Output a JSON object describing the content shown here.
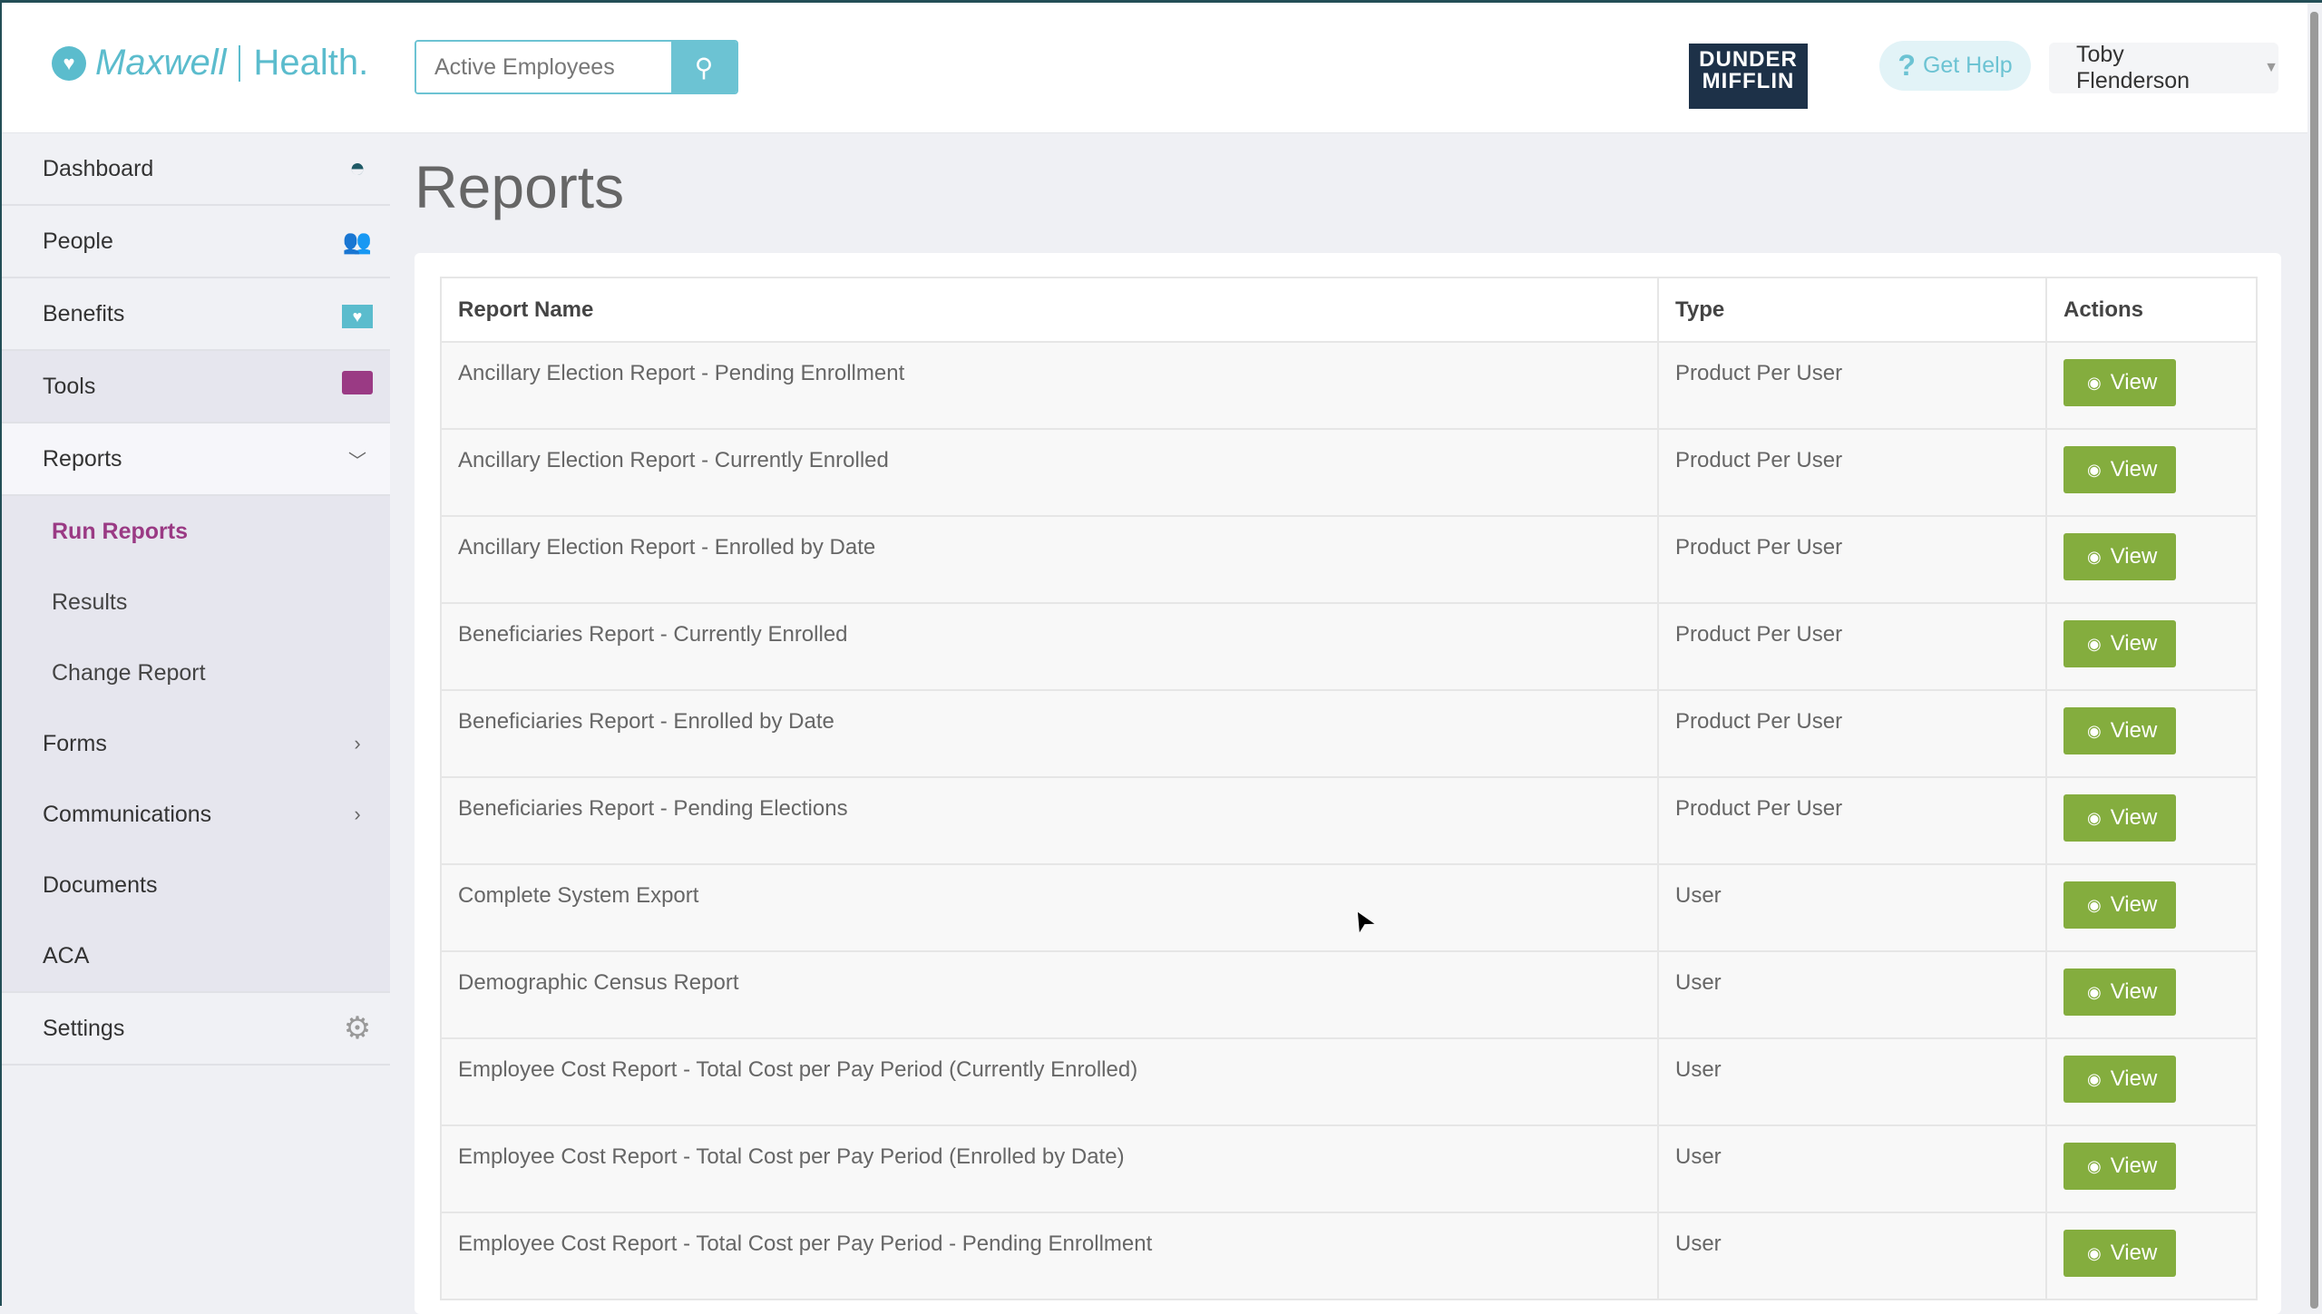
{
  "header": {
    "brand_first": "Maxwell",
    "brand_second": "Health.",
    "search_value": "Active Employees",
    "search_placeholder": "Active Employees",
    "company_logo_line1": "DUNDER",
    "company_logo_line2": "MIFFLIN",
    "help_label": "Get Help",
    "user_name": "Toby Flenderson"
  },
  "sidebar": {
    "items": [
      {
        "label": "Dashboard",
        "icon": "dashboard-gauge-icon"
      },
      {
        "label": "People",
        "icon": "people-icon"
      },
      {
        "label": "Benefits",
        "icon": "heart-icon"
      },
      {
        "label": "Tools",
        "icon": "toolbox-icon"
      },
      {
        "label": "Reports",
        "icon": "chevron-down-icon"
      },
      {
        "label": "Run Reports"
      },
      {
        "label": "Results"
      },
      {
        "label": "Change Report"
      },
      {
        "label": "Forms",
        "icon": "chevron-right-icon"
      },
      {
        "label": "Communications",
        "icon": "chevron-right-icon"
      },
      {
        "label": "Documents"
      },
      {
        "label": "ACA"
      },
      {
        "label": "Settings",
        "icon": "gear-icon"
      }
    ]
  },
  "page": {
    "title": "Reports"
  },
  "table": {
    "headers": [
      "Report Name",
      "Type",
      "Actions"
    ],
    "view_label": "View",
    "rows": [
      {
        "name": "Ancillary Election Report - Pending Enrollment",
        "type": "Product Per User"
      },
      {
        "name": "Ancillary Election Report - Currently Enrolled",
        "type": "Product Per User"
      },
      {
        "name": "Ancillary Election Report - Enrolled by Date",
        "type": "Product Per User"
      },
      {
        "name": "Beneficiaries Report - Currently Enrolled",
        "type": "Product Per User"
      },
      {
        "name": "Beneficiaries Report - Enrolled by Date",
        "type": "Product Per User"
      },
      {
        "name": "Beneficiaries Report - Pending Elections",
        "type": "Product Per User"
      },
      {
        "name": "Complete System Export",
        "type": "User"
      },
      {
        "name": "Demographic Census Report",
        "type": "User"
      },
      {
        "name": "Employee Cost Report - Total Cost per Pay Period (Currently Enrolled)",
        "type": "User"
      },
      {
        "name": "Employee Cost Report - Total Cost per Pay Period (Enrolled by Date)",
        "type": "User"
      },
      {
        "name": "Employee Cost Report - Total Cost per Pay Period - Pending Enrollment",
        "type": "User"
      }
    ]
  },
  "colors": {
    "brand": "#5bbccd",
    "active_sub": "#9a3a84",
    "view_button": "#84ad3e",
    "tools_icon": "#9a3a84",
    "people_icon": "#84ad3e",
    "dashboard_icon": "#1f5a66"
  }
}
